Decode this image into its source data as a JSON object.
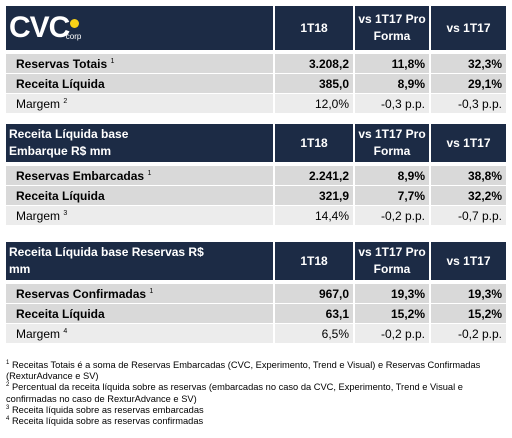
{
  "logo": {
    "text": "CVC",
    "sub": "corp"
  },
  "tables": [
    {
      "header": [
        "",
        "1T18",
        "vs 1T17 Pro Forma",
        "vs 1T17"
      ],
      "rows": [
        {
          "label": "Reservas Totais",
          "sup": "1",
          "values": [
            "3.208,2",
            "11,8%",
            "32,3%"
          ]
        },
        {
          "label": "Receita Líquida",
          "sup": "",
          "values": [
            "385,0",
            "8,9%",
            "29,1%"
          ]
        },
        {
          "label": "Margem",
          "sup": "2",
          "values": [
            "12,0%",
            "-0,3 p.p.",
            "-0,3 p.p."
          ]
        }
      ]
    },
    {
      "header": [
        "Receita Líquida base Embarque R$ mm",
        "1T18",
        "vs 1T17 Pro Forma",
        "vs 1T17"
      ],
      "rows": [
        {
          "label": "Reservas Embarcadas",
          "sup": "1",
          "values": [
            "2.241,2",
            "8,9%",
            "38,8%"
          ]
        },
        {
          "label": "Receita Líquida",
          "sup": "",
          "values": [
            "321,9",
            "7,7%",
            "32,2%"
          ]
        },
        {
          "label": "Margem",
          "sup": "3",
          "values": [
            "14,4%",
            "-0,2 p.p.",
            "-0,7 p.p."
          ]
        }
      ]
    },
    {
      "header": [
        "Receita Líquida base Reservas R$ mm",
        "1T18",
        "vs 1T17 Pro Forma",
        "vs 1T17"
      ],
      "rows": [
        {
          "label": "Reservas Confirmadas",
          "sup": "1",
          "values": [
            "967,0",
            "19,3%",
            "19,3%"
          ]
        },
        {
          "label": "Receita Líquida",
          "sup": "",
          "values": [
            "63,1",
            "15,2%",
            "15,2%"
          ]
        },
        {
          "label": "Margem",
          "sup": "4",
          "values": [
            "6,5%",
            "-0,2 p.p.",
            "-0,2 p.p."
          ]
        }
      ]
    }
  ],
  "footnotes": [
    {
      "n": "1",
      "text": "Receitas Totais é a soma de Reservas Embarcadas (CVC, Experimento, Trend e Visual) e Reservas Confirmadas (RexturAdvance e SV)"
    },
    {
      "n": "2",
      "text": "Percentual da receita líquida sobre as reservas (embarcadas no caso da CVC, Experimento, Trend e Visual e confirmadas no caso de RexturAdvance e SV)"
    },
    {
      "n": "3",
      "text": "Receita líquida sobre as reservas embarcadas"
    },
    {
      "n": "4",
      "text": "Receita líquida sobre as reservas confirmadas"
    }
  ]
}
